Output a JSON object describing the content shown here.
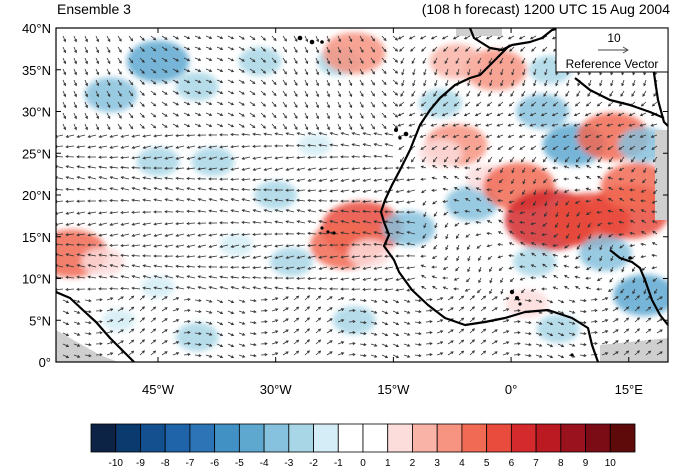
{
  "header": {
    "panel_label": "Ensemble 3",
    "forecast_label": "(108 h forecast) 1200 UTC 15 Aug 2004"
  },
  "map": {
    "lon_range": [
      -58,
      20
    ],
    "lat_range": [
      0,
      40
    ],
    "lat_ticks": [
      {
        "value": 0,
        "label": "0°"
      },
      {
        "value": 5,
        "label": "5°N"
      },
      {
        "value": 10,
        "label": "10°N"
      },
      {
        "value": 15,
        "label": "15°N"
      },
      {
        "value": 20,
        "label": "20°N"
      },
      {
        "value": 25,
        "label": "25°N"
      },
      {
        "value": 30,
        "label": "30°N"
      },
      {
        "value": 35,
        "label": "35°N"
      },
      {
        "value": 40,
        "label": "40°N"
      }
    ],
    "lon_ticks": [
      {
        "value": -45,
        "label": "45°W"
      },
      {
        "value": -30,
        "label": "30°W"
      },
      {
        "value": -15,
        "label": "15°W"
      },
      {
        "value": 0,
        "label": "0°"
      },
      {
        "value": 15,
        "label": "15°E"
      }
    ]
  },
  "reference_vector": {
    "value": "10",
    "label": "Reference Vector"
  },
  "colorbar": {
    "labels": [
      "-10",
      "-9",
      "-8",
      "-7",
      "-6",
      "-5",
      "-4",
      "-3",
      "-2",
      "-1",
      "0",
      "1",
      "2",
      "3",
      "4",
      "5",
      "6",
      "7",
      "8",
      "9",
      "10"
    ],
    "colors": [
      "#0c2345",
      "#0b3a6e",
      "#14508f",
      "#1f63a8",
      "#2c74b6",
      "#4291c4",
      "#5ea8d0",
      "#86c1dd",
      "#a9d6e6",
      "#d4edf6",
      "#ffffff",
      "#ffffff",
      "#fddcdc",
      "#f9b3a7",
      "#f79481",
      "#f16a54",
      "#e94b3c",
      "#d42a2d",
      "#bb1a23",
      "#99121d",
      "#7b0c15",
      "#5e0a0a"
    ]
  },
  "anomaly_patches": [
    {
      "lon": -51,
      "lat": 32,
      "v": -3
    },
    {
      "lon": -45,
      "lat": 36,
      "v": -4
    },
    {
      "lon": -40,
      "lat": 33,
      "v": -2
    },
    {
      "lon": -32,
      "lat": 36,
      "v": -2
    },
    {
      "lon": -25,
      "lat": 37,
      "v": 1
    },
    {
      "lon": -22,
      "lat": 36,
      "v": -2
    },
    {
      "lon": -38,
      "lat": 24,
      "v": -2
    },
    {
      "lon": -45,
      "lat": 24,
      "v": -2
    },
    {
      "lon": -30,
      "lat": 20,
      "v": -2
    },
    {
      "lon": -25,
      "lat": 26,
      "v": -1
    },
    {
      "lon": -20,
      "lat": 37,
      "v": 4
    },
    {
      "lon": -13,
      "lat": 33,
      "v": 1
    },
    {
      "lon": -9,
      "lat": 31,
      "v": -2
    },
    {
      "lon": -7,
      "lat": 26,
      "v": 4
    },
    {
      "lon": -9,
      "lat": 25,
      "v": 2
    },
    {
      "lon": 8,
      "lat": 26,
      "v": -4
    },
    {
      "lon": 13,
      "lat": 27,
      "v": 5
    },
    {
      "lon": 17,
      "lat": 26,
      "v": -3
    },
    {
      "lon": 4,
      "lat": 30,
      "v": -3
    },
    {
      "lon": -2,
      "lat": 35,
      "v": 4
    },
    {
      "lon": -7,
      "lat": 36,
      "v": 3
    },
    {
      "lon": 5,
      "lat": 35,
      "v": -2
    },
    {
      "lon": -19,
      "lat": 16,
      "v": 6
    },
    {
      "lon": -21,
      "lat": 14,
      "v": 5
    },
    {
      "lon": -18,
      "lat": 13,
      "v": 2
    },
    {
      "lon": -13,
      "lat": 16,
      "v": -3
    },
    {
      "lon": -5,
      "lat": 19,
      "v": -3
    },
    {
      "lon": -3,
      "lat": 22,
      "v": 2
    },
    {
      "lon": 1,
      "lat": 21,
      "v": 5
    },
    {
      "lon": 5,
      "lat": 17,
      "v": 7
    },
    {
      "lon": 10,
      "lat": 17,
      "v": 6
    },
    {
      "lon": 15,
      "lat": 18,
      "v": 6
    },
    {
      "lon": 16,
      "lat": 21,
      "v": 5
    },
    {
      "lon": 12,
      "lat": 13,
      "v": -3
    },
    {
      "lon": 3,
      "lat": 12,
      "v": -2
    },
    {
      "lon": 17,
      "lat": 8,
      "v": -4
    },
    {
      "lon": -56,
      "lat": 13,
      "v": 5
    },
    {
      "lon": -52,
      "lat": 12,
      "v": 2
    },
    {
      "lon": -45,
      "lat": 9,
      "v": -1
    },
    {
      "lon": -35,
      "lat": 14,
      "v": -1
    },
    {
      "lon": -28,
      "lat": 12,
      "v": -2
    },
    {
      "lon": -40,
      "lat": 3,
      "v": -2
    },
    {
      "lon": -20,
      "lat": 5,
      "v": -2
    },
    {
      "lon": -8,
      "lat": 2,
      "v": 1
    },
    {
      "lon": 2,
      "lat": 7,
      "v": 2
    },
    {
      "lon": 6,
      "lat": 4,
      "v": -2
    },
    {
      "lon": -50,
      "lat": 5,
      "v": -1
    }
  ]
}
